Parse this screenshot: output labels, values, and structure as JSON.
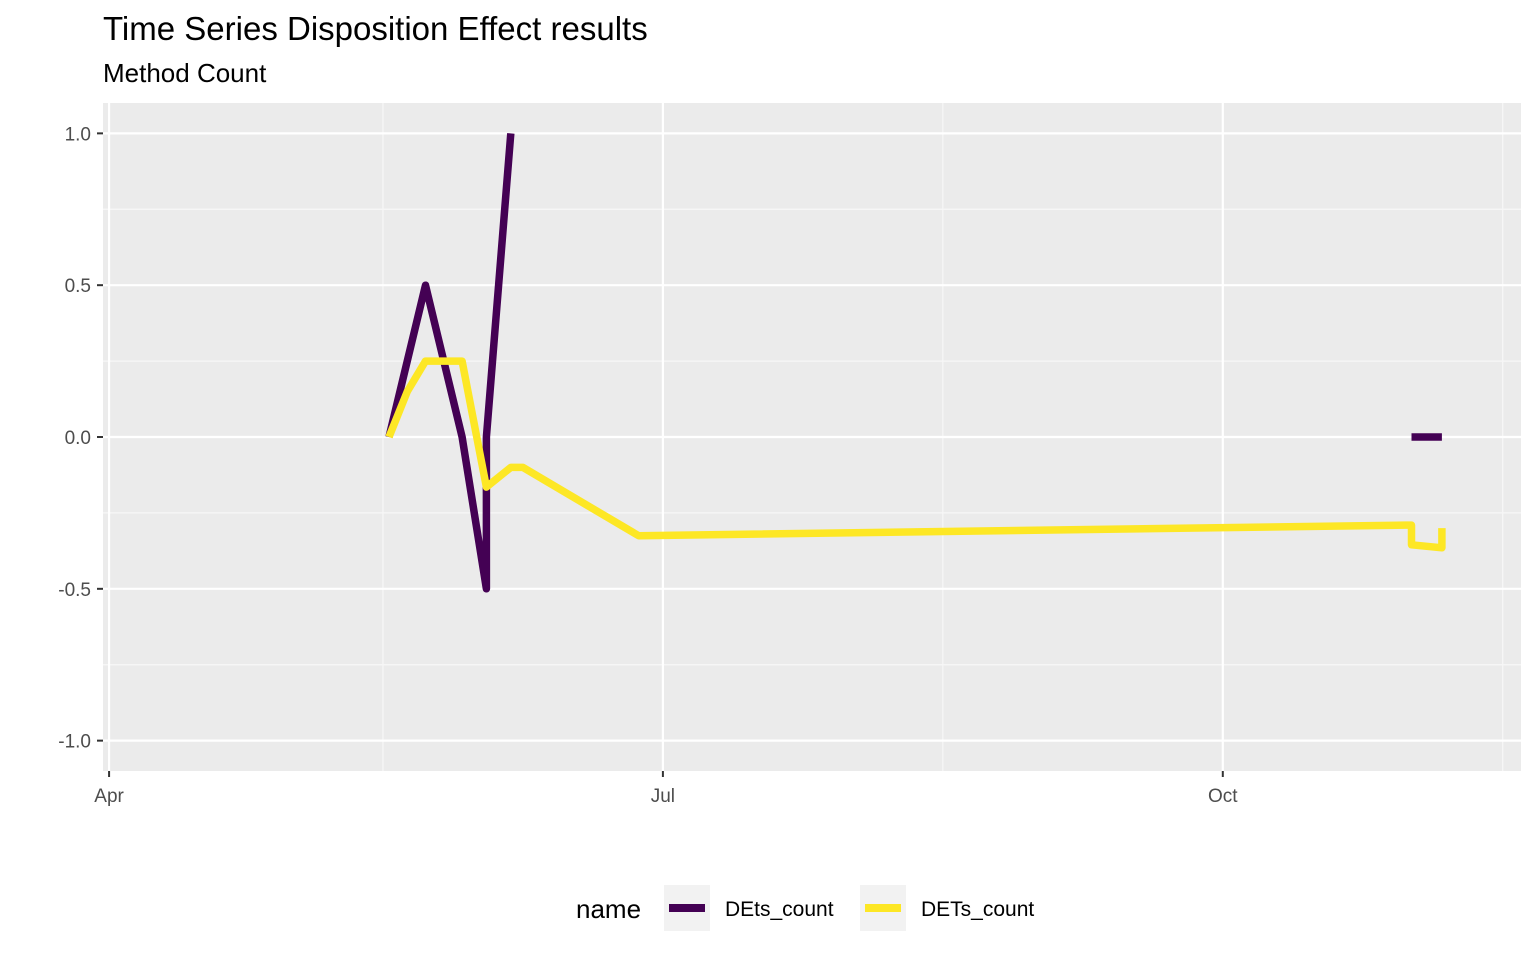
{
  "chart_data": {
    "type": "line",
    "title": "Time Series Disposition Effect results",
    "subtitle": "Method Count",
    "xlabel": "",
    "ylabel": "",
    "x_range": [
      "2023-03-31",
      "2023-11-19"
    ],
    "ylim": [
      -1.1,
      1.1
    ],
    "x_ticks": [
      {
        "date": "2023-04-01",
        "label": "Apr"
      },
      {
        "date": "2023-07-01",
        "label": "Jul"
      },
      {
        "date": "2023-10-01",
        "label": "Oct"
      }
    ],
    "x_minor_ticks": [
      "2023-05-16",
      "2023-08-16",
      "2023-11-16"
    ],
    "y_ticks": [
      {
        "value": 1.0,
        "label": "1.0"
      },
      {
        "value": 0.5,
        "label": "0.5"
      },
      {
        "value": 0.0,
        "label": "0.0"
      },
      {
        "value": -0.5,
        "label": "-0.5"
      },
      {
        "value": -1.0,
        "label": "-1.0"
      }
    ],
    "grid": true,
    "legend": {
      "title": "name",
      "position": "bottom"
    },
    "series": [
      {
        "name": "DEts_count",
        "color": "#440154",
        "segments": [
          [
            {
              "x": "2023-05-17",
              "y": 0.0
            },
            {
              "x": "2023-05-23",
              "y": 0.5
            },
            {
              "x": "2023-05-29",
              "y": 0.0
            },
            {
              "x": "2023-06-02",
              "y": -0.5
            },
            {
              "x": "2023-06-02",
              "y": 0.0
            },
            {
              "x": "2023-06-06",
              "y": 1.0
            }
          ],
          [
            {
              "x": "2023-11-01",
              "y": 0.0
            },
            {
              "x": "2023-11-06",
              "y": 0.0
            }
          ]
        ]
      },
      {
        "name": "DETs_count",
        "color": "#FDE725",
        "segments": [
          [
            {
              "x": "2023-05-17",
              "y": 0.0
            },
            {
              "x": "2023-05-20",
              "y": 0.15
            },
            {
              "x": "2023-05-23",
              "y": 0.25
            },
            {
              "x": "2023-05-29",
              "y": 0.25
            },
            {
              "x": "2023-06-02",
              "y": -0.165
            },
            {
              "x": "2023-06-06",
              "y": -0.1
            },
            {
              "x": "2023-06-08",
              "y": -0.1
            },
            {
              "x": "2023-06-27",
              "y": -0.325
            },
            {
              "x": "2023-10-31",
              "y": -0.29
            },
            {
              "x": "2023-11-01",
              "y": -0.29
            },
            {
              "x": "2023-11-01",
              "y": -0.355
            },
            {
              "x": "2023-11-06",
              "y": -0.365
            },
            {
              "x": "2023-11-06",
              "y": -0.3
            }
          ]
        ]
      }
    ]
  }
}
